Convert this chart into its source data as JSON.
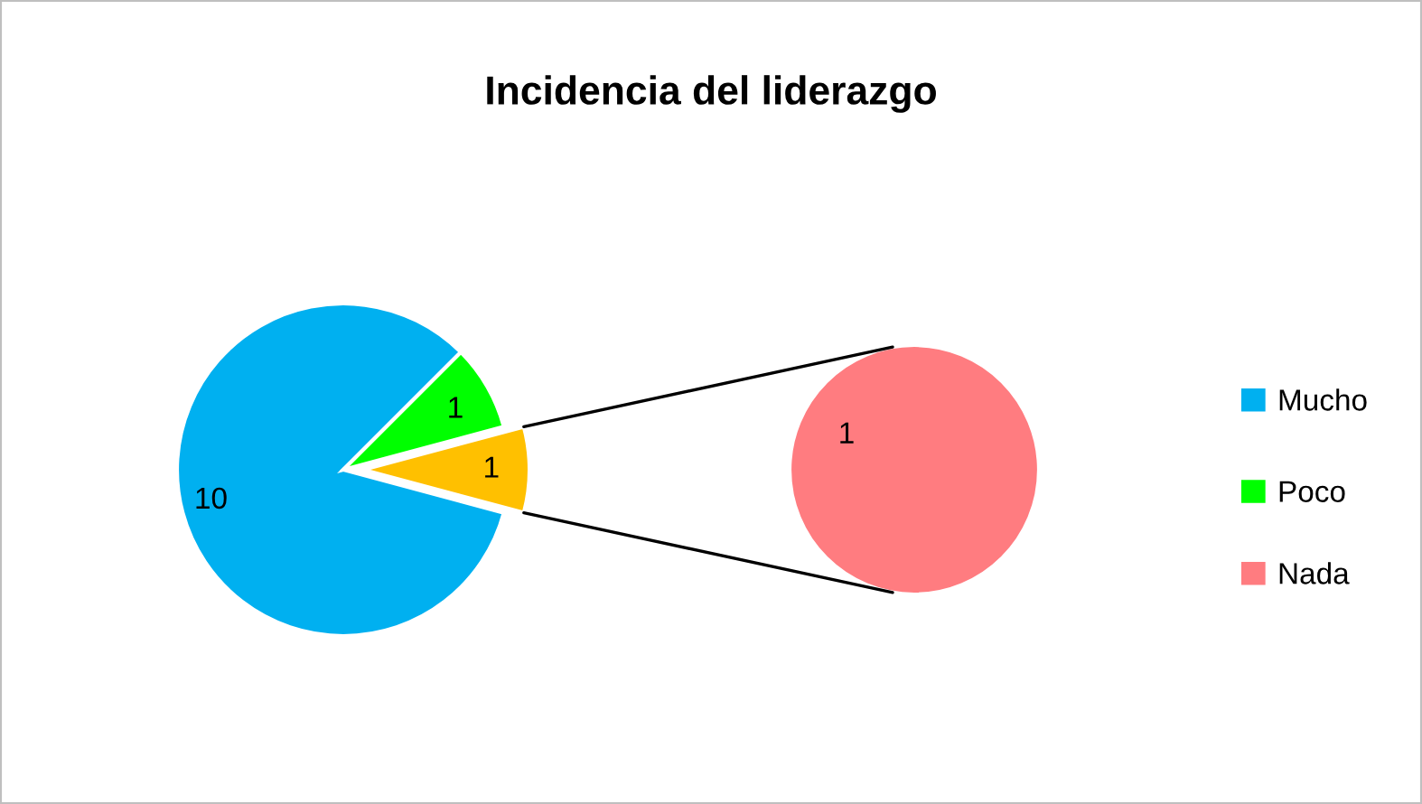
{
  "chart_data": [
    {
      "type": "pie",
      "title": "Incidencia del liderazgo",
      "categories": [
        "Mucho",
        "Poco",
        null
      ],
      "values": [
        10,
        1,
        1
      ],
      "colors": [
        "#00b0f0",
        "#00ff00",
        "#ffc000"
      ],
      "data_labels": true,
      "legend": "right"
    },
    {
      "type": "pie",
      "categories": [
        "Nada"
      ],
      "values": [
        1
      ],
      "colors": [
        "#ff7c80"
      ],
      "data_labels": true,
      "legend": "right"
    }
  ]
}
